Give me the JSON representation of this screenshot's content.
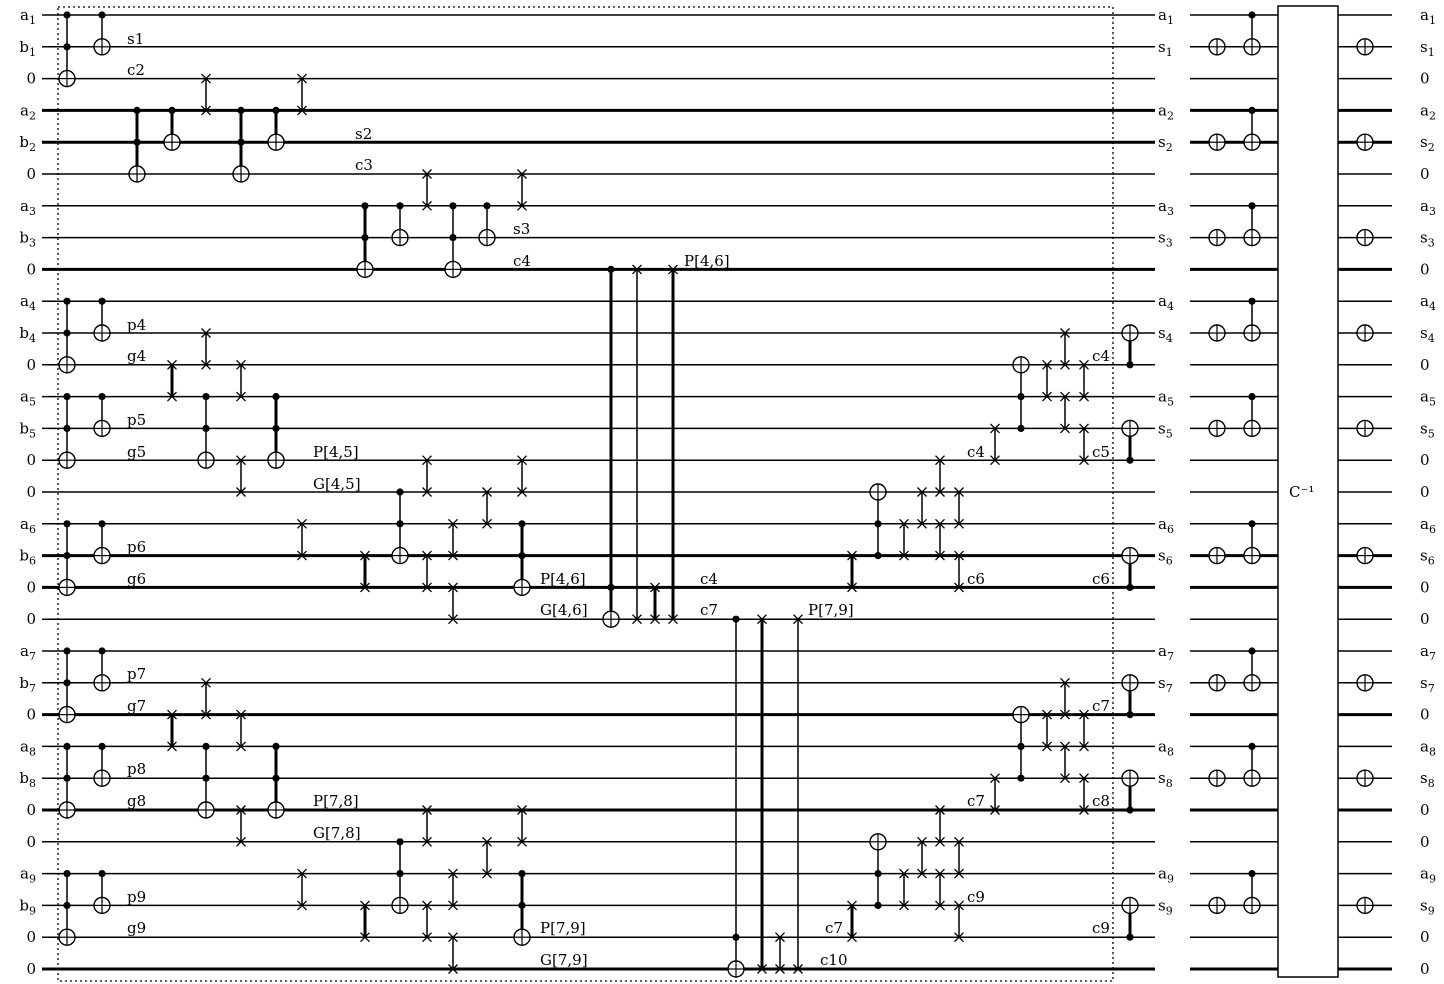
{
  "left_labels": [
    "a1",
    "b1",
    "0",
    "a2",
    "b2",
    "0",
    "a3",
    "b3",
    "0",
    "a4",
    "b4",
    "0",
    "a5",
    "b5",
    "0",
    "0",
    "a6",
    "b6",
    "0",
    "0",
    "a7",
    "b7",
    "0",
    "a8",
    "b8",
    "0",
    "0",
    "a9",
    "b9",
    "0",
    "0"
  ],
  "mid_labels": [
    "a1",
    "s1",
    "",
    "a2",
    "s2",
    "",
    "a3",
    "s3",
    "",
    "a4",
    "s4",
    "",
    "a5",
    "s5",
    "",
    "",
    "a6",
    "s6",
    "",
    "",
    "a7",
    "s7",
    "",
    "a8",
    "s8",
    "",
    "",
    "a9",
    "s9",
    "",
    ""
  ],
  "right_labels": [
    "a1",
    "s1",
    "0",
    "a2",
    "s2",
    "0",
    "a3",
    "s3",
    "0",
    "a4",
    "s4",
    "0",
    "a5",
    "s5",
    "0",
    "0",
    "a6",
    "s6",
    "0",
    "0",
    "a7",
    "s7",
    "0",
    "a8",
    "s8",
    "0",
    "0",
    "a9",
    "s9",
    "0",
    "0"
  ],
  "inverse_box_label": "C⁻¹",
  "notes": {
    "s1": "s1",
    "c2": "c2",
    "s2": "s2",
    "c3": "c3",
    "s3": "s3",
    "c4a": "c4",
    "P46a": "P[4,6]",
    "p4": "p4",
    "g4": "g4",
    "p5": "p5",
    "g5": "g5",
    "P45": "P[4,5]",
    "G45": "G[4,5]",
    "p6": "p6",
    "g6": "g6",
    "P46b": "P[4,6]",
    "G46": "G[4,6]",
    "c4b": "c4",
    "c7a": "c7",
    "P79a": "P[7,9]",
    "p7": "p7",
    "g7": "g7",
    "p8": "p8",
    "g8": "g8",
    "P78": "P[7,8]",
    "G78": "G[7,8]",
    "p9": "p9",
    "g9": "g9",
    "P79b": "P[7,9]",
    "G79": "G[7,9]",
    "c10": "c10",
    "c4r": "c4",
    "c4r2": "c4",
    "c5": "c5",
    "c6r": "c6",
    "c6r2": "c6",
    "c7r": "c7",
    "c7r2": "c7",
    "c8": "c8",
    "c9r": "c9",
    "c9r2": "c9",
    "c7b": "c7"
  }
}
